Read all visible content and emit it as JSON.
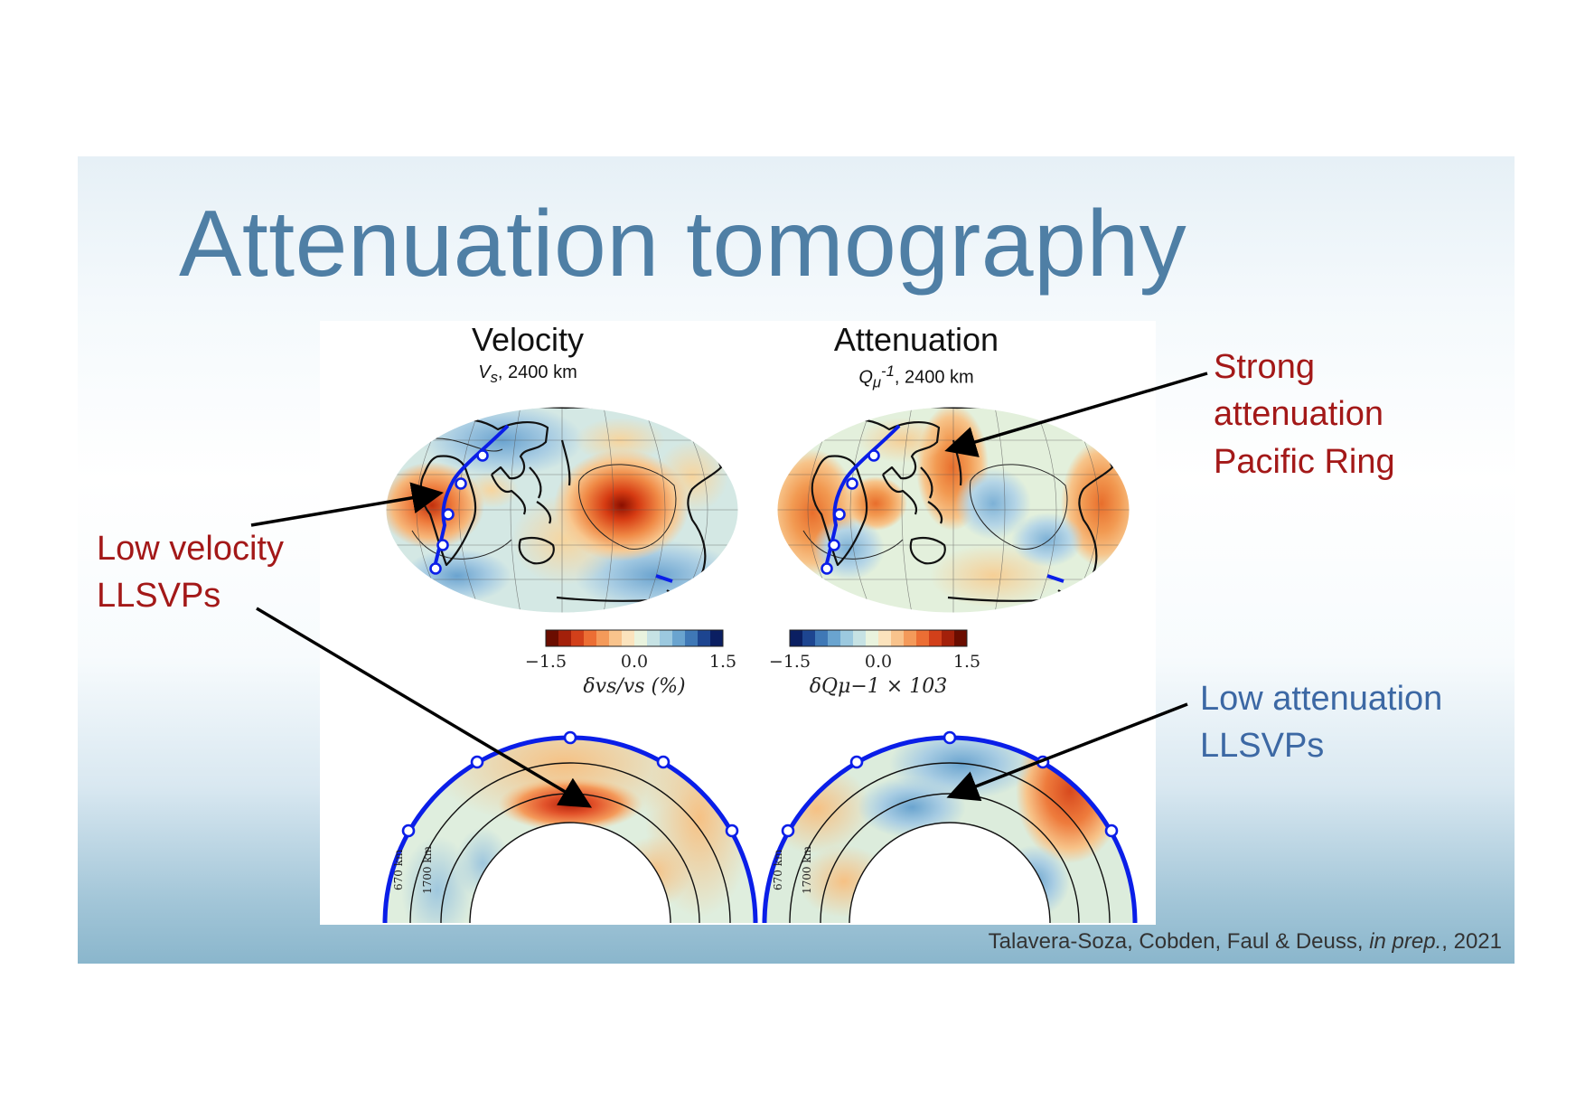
{
  "title": "Attenuation tomography",
  "panels": {
    "velocity": {
      "title": "Velocity",
      "symbol": "V",
      "subscript": "s",
      "depth": ", 2400 km"
    },
    "attenuation": {
      "title": "Attenuation",
      "symbol": "Q",
      "subscript": "μ",
      "superscript": "-1",
      "depth": ", 2400 km"
    }
  },
  "colorbars": {
    "velocity": {
      "ticks": [
        "−1.5",
        "0.0",
        "1.5"
      ],
      "label": "δvs/vs (%)"
    },
    "attenuation": {
      "ticks": [
        "−1.5",
        "0.0",
        "1.5"
      ],
      "label": "δQμ−1 × 103"
    }
  },
  "cross_sections": {
    "depth_labels": [
      "670 km",
      "1700 km"
    ]
  },
  "callouts": {
    "low_velocity": [
      "Low velocity",
      "LLSVPs"
    ],
    "strong_attenuation": [
      "Strong",
      "attenuation",
      "Pacific Ring"
    ],
    "low_attenuation": [
      "Low attenuation",
      "LLSVPs"
    ]
  },
  "citation": {
    "authors": "Talavera-Soza, Cobden, Faul & Deuss, ",
    "status": "in prep.",
    "year": ", 2021"
  },
  "colors": {
    "title": "#4f7fa5",
    "callout_red": "#a31818",
    "callout_blue": "#3c68a4",
    "profile_line": "#0000ee",
    "map_neutral": "#e6f1dd"
  }
}
